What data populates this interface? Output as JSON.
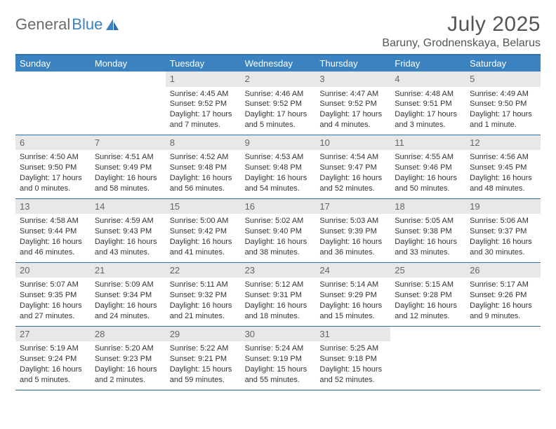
{
  "logo": {
    "text_gray": "General",
    "text_blue": "Blue"
  },
  "header": {
    "month_title": "July 2025",
    "location": "Baruny, Grodnenskaya, Belarus"
  },
  "colors": {
    "brand_blue": "#3b83c0",
    "rule_blue": "#2b6fa8",
    "header_text": "#ffffff",
    "daynum_bg": "#e8e8e8",
    "body_text": "#333333"
  },
  "weekdays": [
    "Sunday",
    "Monday",
    "Tuesday",
    "Wednesday",
    "Thursday",
    "Friday",
    "Saturday"
  ],
  "calendar": {
    "first_day_index": 2,
    "days": [
      {
        "n": 1,
        "sunrise": "4:45 AM",
        "sunset": "9:52 PM",
        "daylight": "17 hours and 7 minutes."
      },
      {
        "n": 2,
        "sunrise": "4:46 AM",
        "sunset": "9:52 PM",
        "daylight": "17 hours and 5 minutes."
      },
      {
        "n": 3,
        "sunrise": "4:47 AM",
        "sunset": "9:52 PM",
        "daylight": "17 hours and 4 minutes."
      },
      {
        "n": 4,
        "sunrise": "4:48 AM",
        "sunset": "9:51 PM",
        "daylight": "17 hours and 3 minutes."
      },
      {
        "n": 5,
        "sunrise": "4:49 AM",
        "sunset": "9:50 PM",
        "daylight": "17 hours and 1 minute."
      },
      {
        "n": 6,
        "sunrise": "4:50 AM",
        "sunset": "9:50 PM",
        "daylight": "17 hours and 0 minutes."
      },
      {
        "n": 7,
        "sunrise": "4:51 AM",
        "sunset": "9:49 PM",
        "daylight": "16 hours and 58 minutes."
      },
      {
        "n": 8,
        "sunrise": "4:52 AM",
        "sunset": "9:48 PM",
        "daylight": "16 hours and 56 minutes."
      },
      {
        "n": 9,
        "sunrise": "4:53 AM",
        "sunset": "9:48 PM",
        "daylight": "16 hours and 54 minutes."
      },
      {
        "n": 10,
        "sunrise": "4:54 AM",
        "sunset": "9:47 PM",
        "daylight": "16 hours and 52 minutes."
      },
      {
        "n": 11,
        "sunrise": "4:55 AM",
        "sunset": "9:46 PM",
        "daylight": "16 hours and 50 minutes."
      },
      {
        "n": 12,
        "sunrise": "4:56 AM",
        "sunset": "9:45 PM",
        "daylight": "16 hours and 48 minutes."
      },
      {
        "n": 13,
        "sunrise": "4:58 AM",
        "sunset": "9:44 PM",
        "daylight": "16 hours and 46 minutes."
      },
      {
        "n": 14,
        "sunrise": "4:59 AM",
        "sunset": "9:43 PM",
        "daylight": "16 hours and 43 minutes."
      },
      {
        "n": 15,
        "sunrise": "5:00 AM",
        "sunset": "9:42 PM",
        "daylight": "16 hours and 41 minutes."
      },
      {
        "n": 16,
        "sunrise": "5:02 AM",
        "sunset": "9:40 PM",
        "daylight": "16 hours and 38 minutes."
      },
      {
        "n": 17,
        "sunrise": "5:03 AM",
        "sunset": "9:39 PM",
        "daylight": "16 hours and 36 minutes."
      },
      {
        "n": 18,
        "sunrise": "5:05 AM",
        "sunset": "9:38 PM",
        "daylight": "16 hours and 33 minutes."
      },
      {
        "n": 19,
        "sunrise": "5:06 AM",
        "sunset": "9:37 PM",
        "daylight": "16 hours and 30 minutes."
      },
      {
        "n": 20,
        "sunrise": "5:07 AM",
        "sunset": "9:35 PM",
        "daylight": "16 hours and 27 minutes."
      },
      {
        "n": 21,
        "sunrise": "5:09 AM",
        "sunset": "9:34 PM",
        "daylight": "16 hours and 24 minutes."
      },
      {
        "n": 22,
        "sunrise": "5:11 AM",
        "sunset": "9:32 PM",
        "daylight": "16 hours and 21 minutes."
      },
      {
        "n": 23,
        "sunrise": "5:12 AM",
        "sunset": "9:31 PM",
        "daylight": "16 hours and 18 minutes."
      },
      {
        "n": 24,
        "sunrise": "5:14 AM",
        "sunset": "9:29 PM",
        "daylight": "16 hours and 15 minutes."
      },
      {
        "n": 25,
        "sunrise": "5:15 AM",
        "sunset": "9:28 PM",
        "daylight": "16 hours and 12 minutes."
      },
      {
        "n": 26,
        "sunrise": "5:17 AM",
        "sunset": "9:26 PM",
        "daylight": "16 hours and 9 minutes."
      },
      {
        "n": 27,
        "sunrise": "5:19 AM",
        "sunset": "9:24 PM",
        "daylight": "16 hours and 5 minutes."
      },
      {
        "n": 28,
        "sunrise": "5:20 AM",
        "sunset": "9:23 PM",
        "daylight": "16 hours and 2 minutes."
      },
      {
        "n": 29,
        "sunrise": "5:22 AM",
        "sunset": "9:21 PM",
        "daylight": "15 hours and 59 minutes."
      },
      {
        "n": 30,
        "sunrise": "5:24 AM",
        "sunset": "9:19 PM",
        "daylight": "15 hours and 55 minutes."
      },
      {
        "n": 31,
        "sunrise": "5:25 AM",
        "sunset": "9:18 PM",
        "daylight": "15 hours and 52 minutes."
      }
    ]
  },
  "labels": {
    "sunrise_prefix": "Sunrise: ",
    "sunset_prefix": "Sunset: ",
    "daylight_prefix": "Daylight: "
  }
}
